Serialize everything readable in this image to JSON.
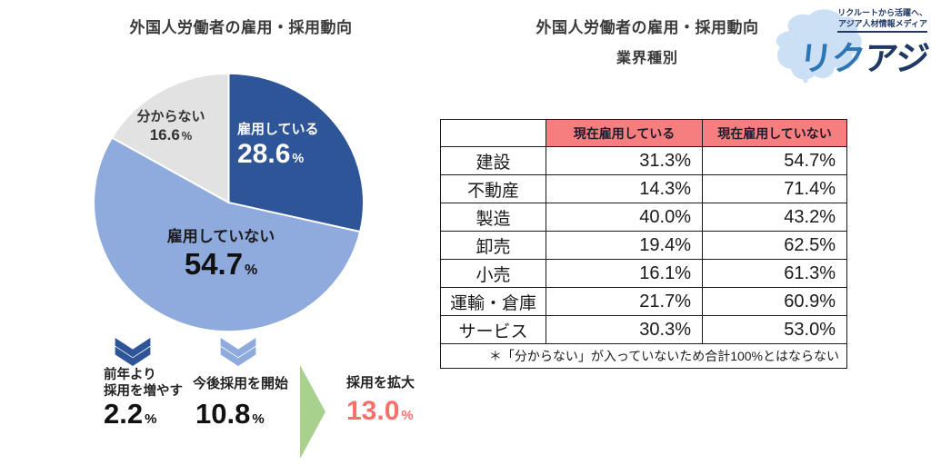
{
  "colors": {
    "pie_employing": "#2E5597",
    "pie_not_employing": "#8FAADC",
    "pie_unknown": "#E2E2E2",
    "table_header_pink": "#F77E7E",
    "highlight_red": "#F4716C",
    "arrow_green": "#A9D18E",
    "chevron_dark_blue": "#2E5597",
    "chevron_light_blue": "#8FAADC",
    "logo_blue": "#2E75B6",
    "logo_navy": "#1F3864"
  },
  "left_section": {
    "title": "外国人労働者の雇用・採用動向",
    "flow": {
      "increase_label_line1": "前年より",
      "increase_label_line2": "採用を増やす",
      "increase_value": "2.2",
      "start_label": "今後採用を開始",
      "start_value": "10.8",
      "expand_label": "採用を拡大",
      "expand_value": "13.0",
      "percent_unit": "%"
    }
  },
  "right_section": {
    "title_line1": "外国人労働者の雇用・採用動向",
    "title_line2": "業界種別"
  },
  "logo": {
    "tagline_line1": "リクルートから活躍へ、",
    "tagline_line2": "アジア人材情報メディア",
    "name_part1": "リク",
    "name_part2": "アジ"
  },
  "chart_data": [
    {
      "type": "pie",
      "title": "外国人労働者の雇用・採用動向",
      "start_angle_deg": 0,
      "direction": "clockwise",
      "legend_position": "inside",
      "slices": [
        {
          "label": "雇用している",
          "value": 28.6,
          "display": "28.6",
          "unit": "%",
          "color": "#2E5597",
          "label_color": "#FFFFFF"
        },
        {
          "label": "雇用していない",
          "value": 54.7,
          "display": "54.7",
          "unit": "%",
          "color": "#8FAADC",
          "label_color": "#1C1C1C"
        },
        {
          "label": "分からない",
          "value": 16.6,
          "display": "16.6",
          "unit": "%",
          "color": "#E2E2E2",
          "label_color": "#333333"
        }
      ],
      "annotations": [
        {
          "label": "前年より採用を増やす",
          "value": 2.2,
          "unit": "%"
        },
        {
          "label": "今後採用を開始",
          "value": 10.8,
          "unit": "%"
        },
        {
          "label": "採用を拡大",
          "value": 13.0,
          "unit": "%"
        }
      ]
    },
    {
      "type": "table",
      "title": "外国人労働者の雇用・採用動向 業界種別",
      "columns": [
        "",
        "現在雇用している",
        "現在雇用していない"
      ],
      "rows": [
        [
          "建設",
          "31.3%",
          "54.7%"
        ],
        [
          "不動産",
          "14.3%",
          "71.4%"
        ],
        [
          "製造",
          "40.0%",
          "43.2%"
        ],
        [
          "卸売",
          "19.4%",
          "62.5%"
        ],
        [
          "小売",
          "16.1%",
          "61.3%"
        ],
        [
          "運輸・倉庫",
          "21.7%",
          "60.9%"
        ],
        [
          "サービス",
          "30.3%",
          "53.0%"
        ]
      ],
      "footnote": "＊「分からない」が入っていないため合計100%とはならない"
    }
  ]
}
